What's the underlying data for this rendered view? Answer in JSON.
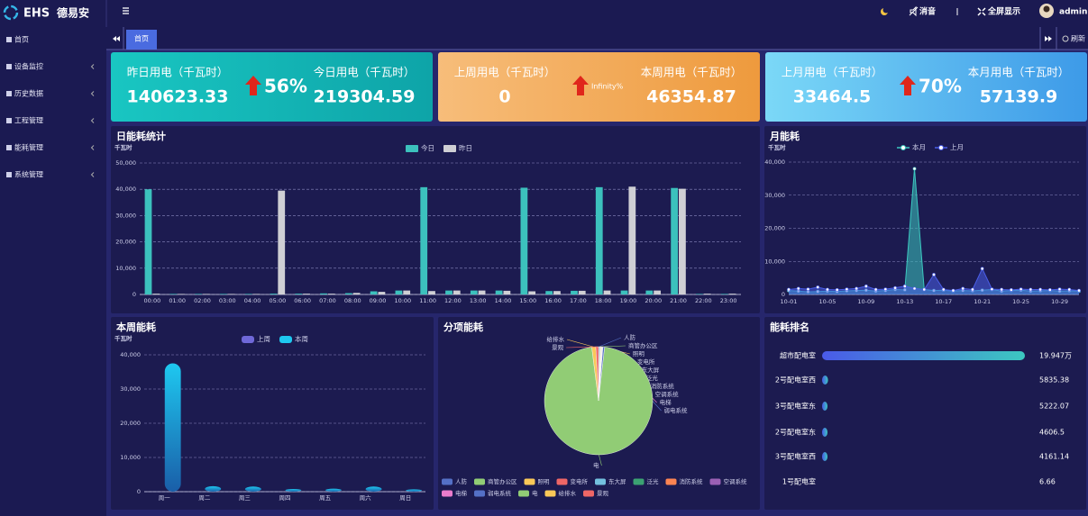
{
  "header": {
    "logo_en": "EHS",
    "logo_cn": "德易安",
    "mute": "消音",
    "fullscreen": "全屏显示",
    "user": "admin"
  },
  "sidebar": [
    "首页",
    "设备监控",
    "历史数据",
    "工程管理",
    "能耗管理",
    "系统管理"
  ],
  "tabs": {
    "active": "首页",
    "refresh": "刷新"
  },
  "cards": [
    {
      "left_label": "昨日用电（千瓦时）",
      "left_value": 140623.33,
      "change": "56%",
      "right_label": "今日用电（千瓦时）",
      "right_value": 219304.59
    },
    {
      "left_label": "上周用电（千瓦时）",
      "left_value": 0,
      "change": "Infinity%",
      "right_label": "本周用电（千瓦时）",
      "right_value": 46354.87
    },
    {
      "left_label": "上月用电（千瓦时）",
      "left_value": 33464.5,
      "change": "70%",
      "right_label": "本月用电（千瓦时）",
      "right_value": 57139.9
    }
  ],
  "chart_data": [
    {
      "type": "bar",
      "title": "日能耗统计",
      "y_label": "千瓦时",
      "categories": [
        "00:00",
        "01:00",
        "02:00",
        "03:00",
        "04:00",
        "05:00",
        "06:00",
        "07:00",
        "08:00",
        "09:00",
        "10:00",
        "11:00",
        "12:00",
        "13:00",
        "14:00",
        "15:00",
        "16:00",
        "17:00",
        "18:00",
        "19:00",
        "20:00",
        "21:00",
        "22:00",
        "23:00"
      ],
      "series": [
        {
          "name": "今日",
          "color": "#3cc1bd",
          "values": [
            40000,
            200,
            200,
            200,
            200,
            300,
            300,
            400,
            500,
            1200,
            1500,
            40800,
            1500,
            1500,
            1500,
            40600,
            1300,
            1400,
            40800,
            1500,
            1500,
            40500,
            200,
            200
          ]
        },
        {
          "name": "昨日",
          "color": "#cfcfd4",
          "values": [
            300,
            200,
            200,
            200,
            200,
            39500,
            300,
            300,
            600,
            1000,
            1500,
            1300,
            1500,
            1500,
            1400,
            1200,
            1300,
            1400,
            1500,
            41000,
            1500,
            40200,
            300,
            300
          ]
        }
      ],
      "ylim": [
        0,
        50000
      ],
      "yticks": [
        0,
        {
          "value": 10000,
          "label": "10,000"
        },
        {
          "value": 20000,
          "label": "20,000"
        },
        {
          "value": 30000,
          "label": "30,000"
        },
        {
          "value": 40000,
          "label": "40,000"
        },
        {
          "value": 50000,
          "label": "50,000"
        }
      ],
      "grid": true
    },
    {
      "type": "area",
      "title": "月能耗",
      "y_label": "千瓦时",
      "categories": [
        "10-01",
        null,
        null,
        null,
        "10-05",
        null,
        null,
        null,
        "10-09",
        null,
        null,
        null,
        "10-13",
        null,
        null,
        null,
        "10-17",
        null,
        null,
        null,
        "10-21",
        null,
        null,
        null,
        "10-25",
        null,
        null,
        null,
        "10-29",
        null,
        null
      ],
      "series": [
        {
          "name": "本月",
          "color": "#3cc8c0",
          "values": [
            1200,
            1000,
            800,
            900,
            1000,
            900,
            1100,
            1200,
            1300,
            1000,
            1200,
            1500,
            1400,
            38000,
            1500,
            1200,
            1300,
            1000,
            1200,
            1100,
            1300,
            1500,
            1000,
            1200,
            1300,
            1000,
            1100,
            1200,
            1000,
            1100,
            1000
          ]
        },
        {
          "name": "上月",
          "color": "#4a5ee8",
          "values": [
            1500,
            1800,
            1600,
            2200,
            1500,
            1400,
            1600,
            1800,
            2500,
            1500,
            1600,
            2000,
            2500,
            1800,
            1500,
            6000,
            1500,
            1200,
            1800,
            1500,
            7800,
            1600,
            1500,
            1400,
            1600,
            1500,
            1500,
            1400,
            1600,
            1500,
            1200
          ]
        }
      ],
      "ylim": [
        0,
        40000
      ],
      "yticks": [
        0,
        {
          "value": 10000,
          "label": "10,000"
        },
        {
          "value": 20000,
          "label": "20,000"
        },
        {
          "value": 30000,
          "label": "30,000"
        },
        {
          "value": 40000,
          "label": "40,000"
        }
      ],
      "grid": true
    },
    {
      "type": "bar",
      "title": "本周能耗",
      "y_label": "千瓦时",
      "rounded": true,
      "categories": [
        "周一",
        "周二",
        "周三",
        "周四",
        "周五",
        "周六",
        "周日"
      ],
      "series": [
        {
          "name": "上周",
          "color": "#6f68d8",
          "values": [
            0,
            0,
            0,
            0,
            0,
            0,
            0
          ]
        },
        {
          "name": "本周",
          "color": "#1ec8f0",
          "values": [
            37500,
            1600,
            1500,
            800,
            900,
            1500,
            700
          ]
        }
      ],
      "ylim": [
        0,
        40000
      ],
      "yticks": [
        0,
        {
          "value": 10000,
          "label": "10,000"
        },
        {
          "value": 20000,
          "label": "20,000"
        },
        {
          "value": 30000,
          "label": "30,000"
        },
        {
          "value": 40000,
          "label": "40,000"
        }
      ],
      "grid": true
    },
    {
      "type": "pie",
      "title": "分项能耗",
      "legend": "bottom",
      "categories": [
        "人防",
        "商管办公区",
        "照明",
        "变电所",
        "东大屏",
        "泛光",
        "消防系统",
        "空调系统",
        "电梯",
        "弱电系统",
        "电",
        "给排水",
        "景观"
      ],
      "values": [
        0.3,
        0.2,
        0.2,
        0.1,
        0.1,
        0.1,
        0.1,
        0.1,
        0.1,
        0.5,
        96,
        1.2,
        0.8
      ],
      "colors": [
        "#5470c6",
        "#91cc75",
        "#fac858",
        "#ee6666",
        "#73c0de",
        "#3ba272",
        "#fc8452",
        "#9a60b4",
        "#ea7ccc",
        "#5470c6",
        "#91cc75",
        "#fac858",
        "#ee6666"
      ]
    },
    {
      "type": "ranking",
      "title": "能耗排名",
      "categories": [
        "超市配电室",
        "2号配电室西",
        "3号配电室东",
        "2号配电室东",
        "3号配电室西",
        "1号配电室"
      ],
      "values": [
        199470,
        5835.38,
        5222.07,
        4606.5,
        4161.14,
        6.66
      ],
      "value_labels": [
        "19.947万",
        "5835.38",
        "5222.07",
        "4606.5",
        "4161.14",
        "6.66"
      ],
      "colors": [
        "#4a5ae8",
        "#3cc8c0"
      ]
    }
  ]
}
